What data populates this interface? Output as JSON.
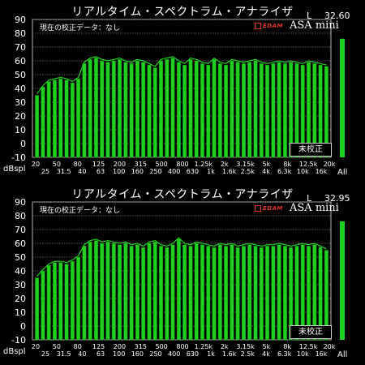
{
  "panels": [
    {
      "title": "リアルタイム・スペクトラム・アナライザ",
      "channel": "L",
      "level": "32.60",
      "calibration": "現在の校正データ：なし",
      "brand": "EDAM",
      "model": "ASA mini",
      "uncalibrated": "未校正",
      "unit": "dBspl",
      "all_label": "All"
    },
    {
      "title": "リアルタイム・スペクトラム・アナライザ",
      "channel": "L",
      "level": "32.95",
      "calibration": "現在の校正データ：なし",
      "brand": "EDAM",
      "model": "ASA mini",
      "uncalibrated": "未校正",
      "unit": "dBspl",
      "all_label": "All"
    }
  ],
  "chart_data": [
    {
      "type": "bar",
      "y_ticks": [
        90,
        80,
        70,
        60,
        50,
        40,
        30,
        20,
        10,
        0,
        -10
      ],
      "ylim": [
        -10,
        90
      ],
      "x_labels_upper": [
        "20",
        "50",
        "80",
        "125",
        "200",
        "315",
        "500",
        "800",
        "1.25k",
        "2k",
        "3.15k",
        "5k",
        "8k",
        "12.5k",
        "20k"
      ],
      "x_labels_lower": [
        "25",
        "31.5",
        "40",
        "63",
        "100",
        "160",
        "250",
        "400",
        "630",
        "1k",
        "1.6k",
        "2.5k",
        "4k",
        "6.3k",
        "10k",
        "16k"
      ],
      "values": [
        35,
        41,
        45,
        46,
        47,
        46,
        44,
        47,
        58,
        61,
        62,
        60,
        59,
        60,
        61,
        59,
        58,
        60,
        59,
        57,
        55,
        60,
        61,
        62,
        59,
        57,
        61,
        60,
        58,
        57,
        61,
        58,
        57,
        60,
        59,
        58,
        59,
        60,
        58,
        57,
        58,
        59,
        58,
        59,
        58,
        57,
        59,
        58,
        57,
        56
      ],
      "peak": [
        36,
        42,
        46,
        47,
        48,
        47,
        45,
        48,
        59,
        62,
        63,
        61,
        60,
        61,
        62,
        60,
        59,
        61,
        60,
        58,
        56,
        61,
        62,
        63,
        60,
        58,
        62,
        61,
        59,
        58,
        62,
        59,
        58,
        61,
        60,
        59,
        60,
        61,
        59,
        58,
        59,
        60,
        59,
        60,
        59,
        58,
        60,
        59,
        58,
        57
      ],
      "all": 76
    },
    {
      "type": "bar",
      "y_ticks": [
        90,
        80,
        70,
        60,
        50,
        40,
        30,
        20,
        10,
        0,
        -10
      ],
      "ylim": [
        -10,
        90
      ],
      "x_labels_upper": [
        "20",
        "50",
        "80",
        "125",
        "200",
        "315",
        "500",
        "800",
        "1.25k",
        "2k",
        "3.15k",
        "5k",
        "8k",
        "12.5k",
        "20k"
      ],
      "x_labels_lower": [
        "25",
        "31.5",
        "40",
        "63",
        "100",
        "160",
        "250",
        "400",
        "630",
        "1k",
        "1.6k",
        "2.5k",
        "4k",
        "6.3k",
        "10k",
        "16k"
      ],
      "values": [
        35,
        40,
        44,
        46,
        46,
        45,
        47,
        50,
        58,
        61,
        62,
        60,
        61,
        60,
        59,
        60,
        58,
        59,
        57,
        60,
        61,
        58,
        57,
        59,
        63,
        59,
        58,
        60,
        59,
        58,
        57,
        59,
        58,
        59,
        57,
        58,
        59,
        58,
        57,
        58,
        58,
        59,
        58,
        57,
        58,
        59,
        58,
        59,
        57,
        55
      ],
      "peak": [
        36,
        41,
        45,
        47,
        47,
        46,
        48,
        51,
        59,
        62,
        63,
        61,
        62,
        61,
        60,
        61,
        59,
        60,
        58,
        61,
        62,
        59,
        58,
        60,
        64,
        60,
        59,
        61,
        60,
        59,
        58,
        60,
        59,
        60,
        58,
        59,
        60,
        59,
        58,
        59,
        59,
        60,
        59,
        58,
        59,
        60,
        59,
        60,
        58,
        56
      ],
      "all": 76
    }
  ],
  "colors": {
    "bar": "#1fd11f",
    "bar_edge": "#0a7a0a",
    "grid": "#777777",
    "axis_text": "#ffffff"
  }
}
